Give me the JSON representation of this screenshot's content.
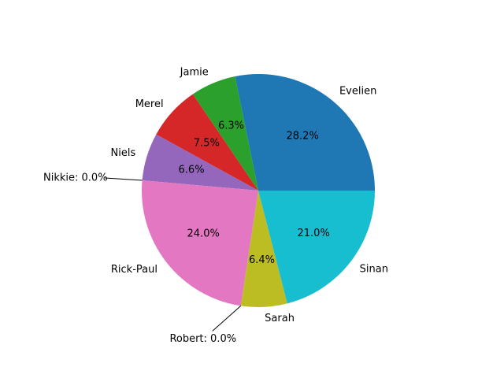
{
  "chart_data": {
    "type": "pie",
    "title": "",
    "start_angle_deg": 0,
    "direction": "counterclockwise",
    "slices": [
      {
        "label": "Evelien",
        "value": 28.2,
        "pct_label": "28.2%",
        "color": "#1f77b4"
      },
      {
        "label": "Jamie",
        "value": 6.3,
        "pct_label": "6.3%",
        "color": "#2ca02c"
      },
      {
        "label": "Merel",
        "value": 7.5,
        "pct_label": "7.5%",
        "color": "#d62728"
      },
      {
        "label": "Niels",
        "value": 6.6,
        "pct_label": "6.6%",
        "color": "#9467bd"
      },
      {
        "label": "Nikkie",
        "value": 0.0,
        "callout": "Nikkie: 0.0%",
        "color": "#8c564b"
      },
      {
        "label": "Rick-Paul",
        "value": 24.0,
        "pct_label": "24.0%",
        "color": "#e377c2"
      },
      {
        "label": "Robert",
        "value": 0.0,
        "callout": "Robert: 0.0%",
        "color": "#7f7f7f"
      },
      {
        "label": "Sarah",
        "value": 6.4,
        "pct_label": "6.4%",
        "color": "#bcbd22"
      },
      {
        "label": "Sinan",
        "value": 21.0,
        "pct_label": "21.0%",
        "color": "#17becf"
      }
    ]
  }
}
